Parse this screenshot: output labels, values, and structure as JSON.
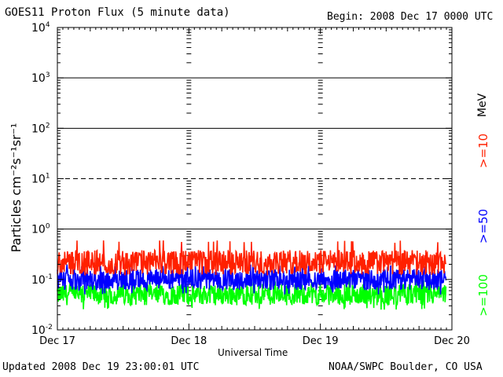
{
  "header": {
    "title": "GOES11 Proton Flux (5 minute data)",
    "begin": "Begin: 2008 Dec 17 0000 UTC"
  },
  "footer": {
    "updated": "Updated 2008 Dec 19 23:00:01 UTC",
    "credit": "NOAA/SWPC Boulder, CO USA"
  },
  "chart_data": {
    "type": "line",
    "title": "GOES11 Proton Flux (5 minute data)",
    "xlabel": "Universal Time",
    "ylabel": "Particles cm⁻²s⁻¹sr⁻¹",
    "yscale": "log",
    "ylim": [
      0.01,
      10000
    ],
    "xlim": [
      "2008-12-17 00:00",
      "2008-12-20 00:00"
    ],
    "x_ticks": [
      "Dec 17",
      "Dec 18",
      "Dec 19",
      "Dec 20"
    ],
    "y_ticks": [
      {
        "base": "10",
        "exp": "4"
      },
      {
        "base": "10",
        "exp": "3"
      },
      {
        "base": "10",
        "exp": "2"
      },
      {
        "base": "10",
        "exp": "1"
      },
      {
        "base": "10",
        "exp": "0"
      },
      {
        "base": "10",
        "exp": "-1"
      },
      {
        "base": "10",
        "exp": "-2"
      }
    ],
    "unit_label": "MeV",
    "series": [
      {
        "name": ">=10",
        "color": "#ff2000",
        "typical_value": 0.22,
        "range": [
          0.12,
          0.6
        ]
      },
      {
        "name": ">=50",
        "color": "#0000ff",
        "typical_value": 0.1,
        "range": [
          0.05,
          0.2
        ]
      },
      {
        "name": ">=100",
        "color": "#00ff00",
        "typical_value": 0.05,
        "range": [
          0.025,
          0.1
        ]
      }
    ],
    "reference_lines": [
      {
        "value": 10,
        "style": "dashed"
      },
      {
        "value": 1,
        "style": "solid"
      }
    ],
    "grid": true
  }
}
